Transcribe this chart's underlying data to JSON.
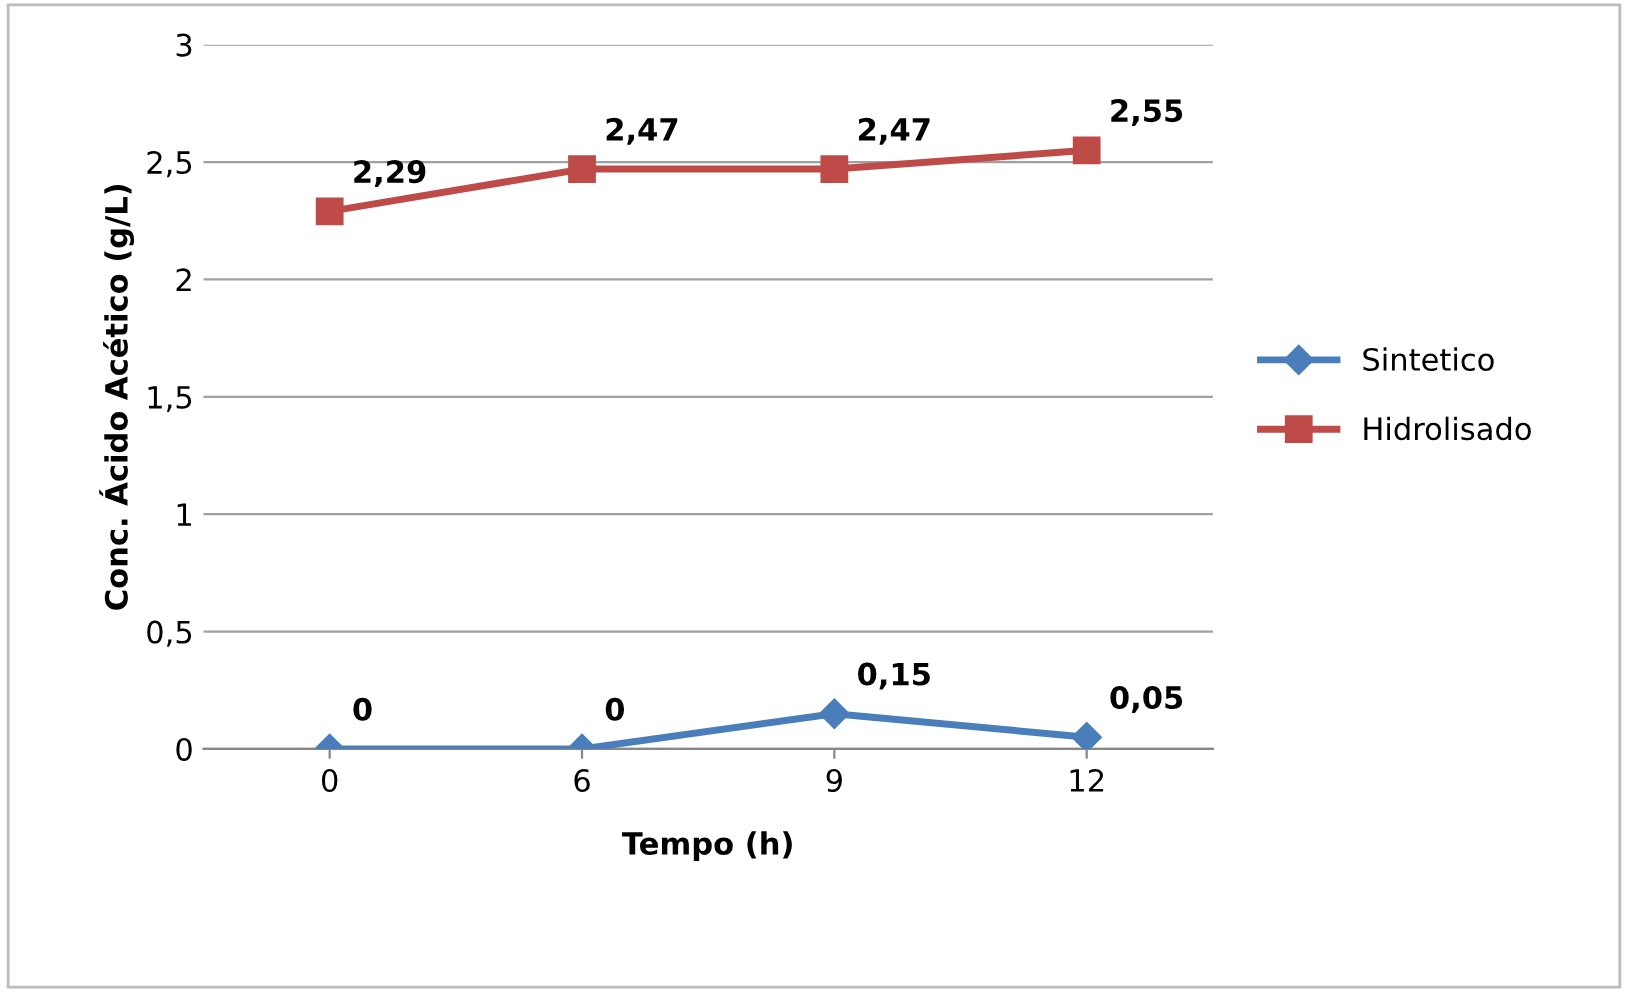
{
  "chart_data": {
    "type": "line",
    "xlabel": "Tempo (h)",
    "ylabel": "Conc. Ácido Acético (g/L)",
    "categories": [
      "0",
      "6",
      "9",
      "12"
    ],
    "ylim": [
      0,
      3
    ],
    "yticks": [
      0,
      {
        "value": 0.5,
        "label": "0,5"
      },
      1,
      {
        "value": 1.5,
        "label": "1,5"
      },
      2,
      {
        "value": 2.5,
        "label": "2,5"
      },
      3
    ],
    "grid": "y",
    "legend": "right",
    "series": [
      {
        "name": "Sintetico",
        "color": "#4a7ebb",
        "marker": "diamond",
        "values": [
          0,
          0,
          0.15,
          0.05
        ],
        "value_labels": [
          "0",
          "0",
          "0,15",
          "0,05"
        ]
      },
      {
        "name": "Hidrolisado",
        "color": "#be4b48",
        "marker": "square",
        "values": [
          2.29,
          2.47,
          2.47,
          2.55
        ],
        "value_labels": [
          "2,29",
          "2,47",
          "2,47",
          "2,55"
        ]
      }
    ]
  }
}
